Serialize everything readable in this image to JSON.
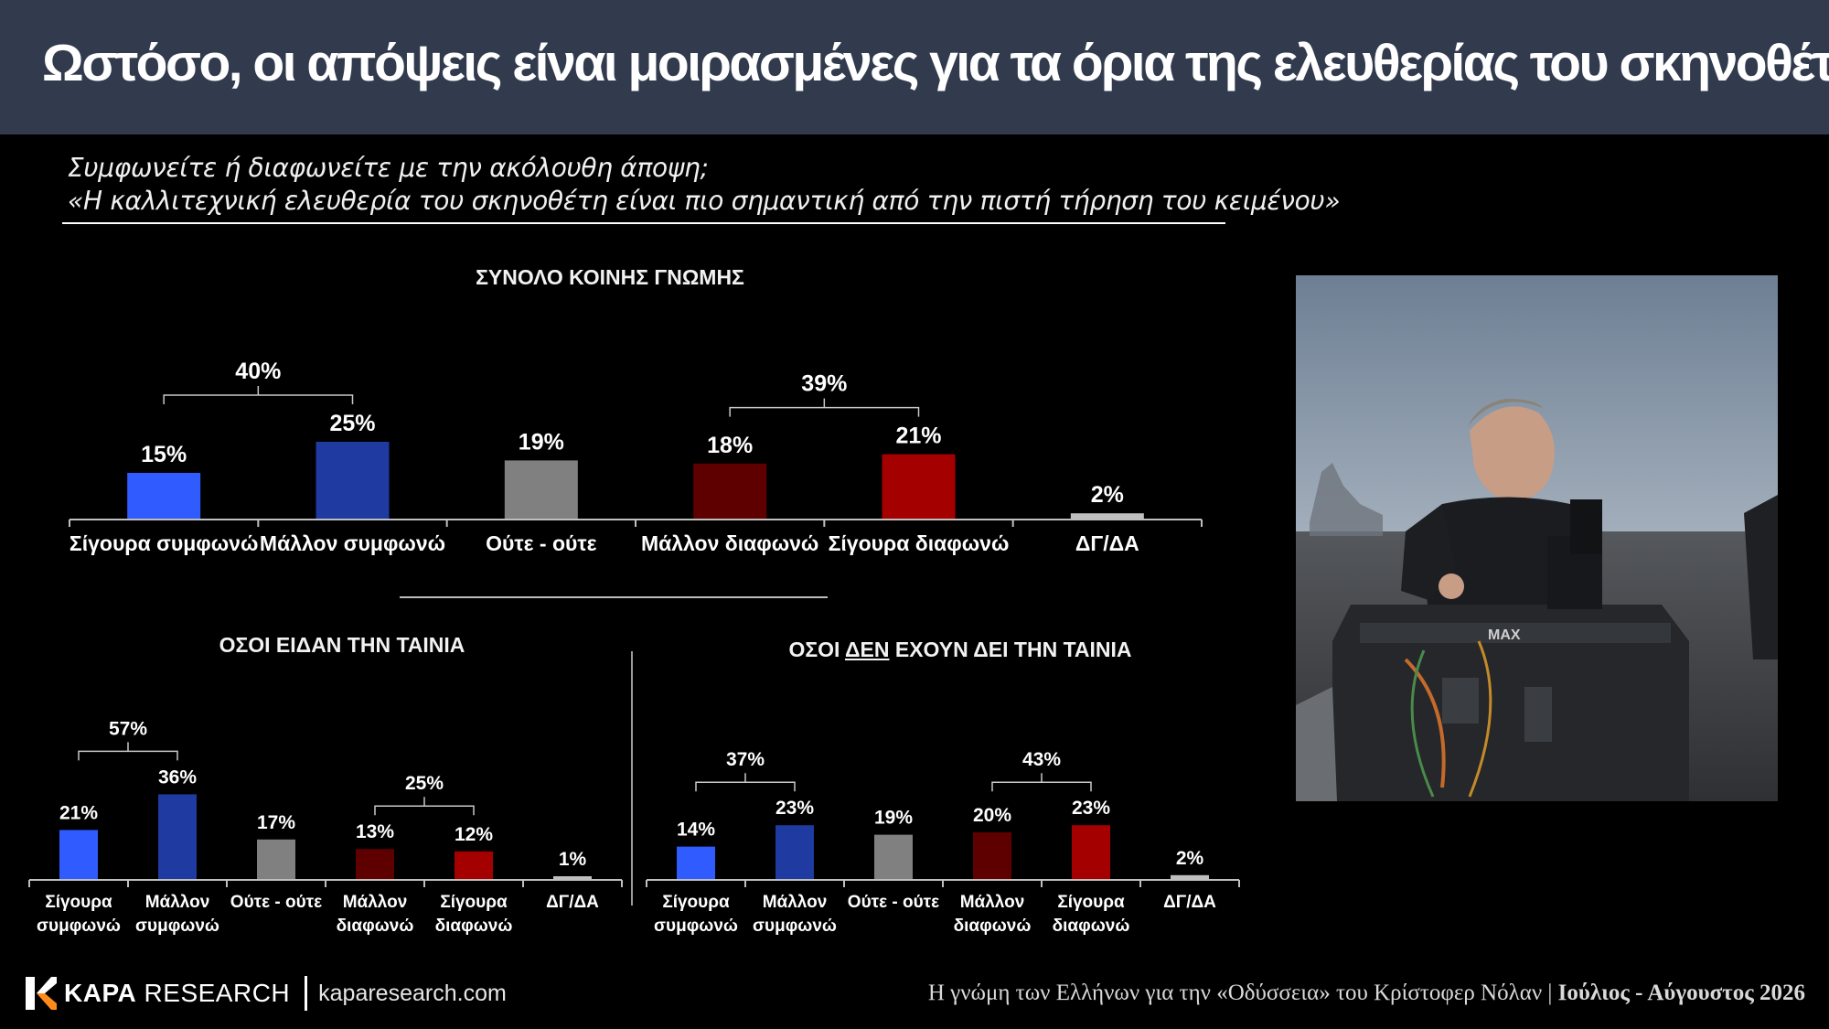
{
  "header": {
    "title": "Ωστόσο, οι απόψεις είναι μοιρασμένες για τα όρια της ελευθερίας του σκηνοθέτη"
  },
  "question": {
    "line1": "Συμφωνείτε ή διαφωνείτε με την ακόλουθη άποψη;",
    "line2": "«Η καλλιτεχνική ελευθερία του σκηνοθέτη είναι πιο σημαντική από την πιστή τήρηση του κειμένου»"
  },
  "colors": {
    "strongly_agree": "#2f5bff",
    "rather_agree": "#1f3aa0",
    "neither": "#808080",
    "rather_disagree": "#5e0000",
    "strongly_disagree": "#a50000",
    "dk": "#bfbfbf"
  },
  "chart_data": [
    {
      "type": "bar",
      "title": "ΣΥΝΟΛΟ ΚΟΙΝΗΣ ΓΝΩΜΗΣ",
      "categories": [
        "Σίγουρα συμφωνώ",
        "Μάλλον συμφωνώ",
        "Ούτε - ούτε",
        "Μάλλον διαφωνώ",
        "Σίγουρα διαφωνώ",
        "ΔΓ/ΔΑ"
      ],
      "values": [
        15,
        25,
        19,
        18,
        21,
        2
      ],
      "value_labels": [
        "15%",
        "25%",
        "19%",
        "18%",
        "21%",
        "2%"
      ],
      "groups": [
        {
          "label": "40%",
          "from": 0,
          "to": 1
        },
        {
          "label": "39%",
          "from": 3,
          "to": 4
        }
      ]
    },
    {
      "type": "bar",
      "title": "ΟΣΟΙ ΕΙΔΑΝ ΤΗΝ ΤΑΙΝΙΑ",
      "categories": [
        [
          "Σίγουρα",
          "συμφωνώ"
        ],
        [
          "Μάλλον",
          "συμφωνώ"
        ],
        [
          "Ούτε - ούτε"
        ],
        [
          "Μάλλον",
          "διαφωνώ"
        ],
        [
          "Σίγουρα",
          "διαφωνώ"
        ],
        [
          "ΔΓ/ΔΑ"
        ]
      ],
      "values": [
        21,
        36,
        17,
        13,
        12,
        1
      ],
      "value_labels": [
        "21%",
        "36%",
        "17%",
        "13%",
        "12%",
        "1%"
      ],
      "groups": [
        {
          "label": "57%",
          "from": 0,
          "to": 1
        },
        {
          "label": "25%",
          "from": 3,
          "to": 4
        }
      ]
    },
    {
      "type": "bar",
      "title_parts": [
        "ΟΣΟΙ ",
        "ΔΕΝ",
        " ΕΧΟΥΝ ΔΕΙ ΤΗΝ ΤΑΙΝΙΑ"
      ],
      "categories": [
        [
          "Σίγουρα",
          "συμφωνώ"
        ],
        [
          "Μάλλον",
          "συμφωνώ"
        ],
        [
          "Ούτε - ούτε"
        ],
        [
          "Μάλλον",
          "διαφωνώ"
        ],
        [
          "Σίγουρα",
          "διαφωνώ"
        ],
        [
          "ΔΓ/ΔΑ"
        ]
      ],
      "values": [
        14,
        23,
        19,
        20,
        23,
        2
      ],
      "value_labels": [
        "14%",
        "23%",
        "19%",
        "20%",
        "23%",
        "2%"
      ],
      "groups": [
        {
          "label": "37%",
          "from": 0,
          "to": 1
        },
        {
          "label": "43%",
          "from": 3,
          "to": 4
        }
      ]
    }
  ],
  "footer": {
    "logo_bold": "KAPA",
    "logo_rest": " RESEARCH",
    "url": "kaparesearch.com",
    "source_text": "Η γνώμη των Ελλήνων για την «Οδύσσεια» του Κρίστοφερ Νόλαν | ",
    "source_date": "Ιούλιος - Αύγουστος 2026"
  }
}
